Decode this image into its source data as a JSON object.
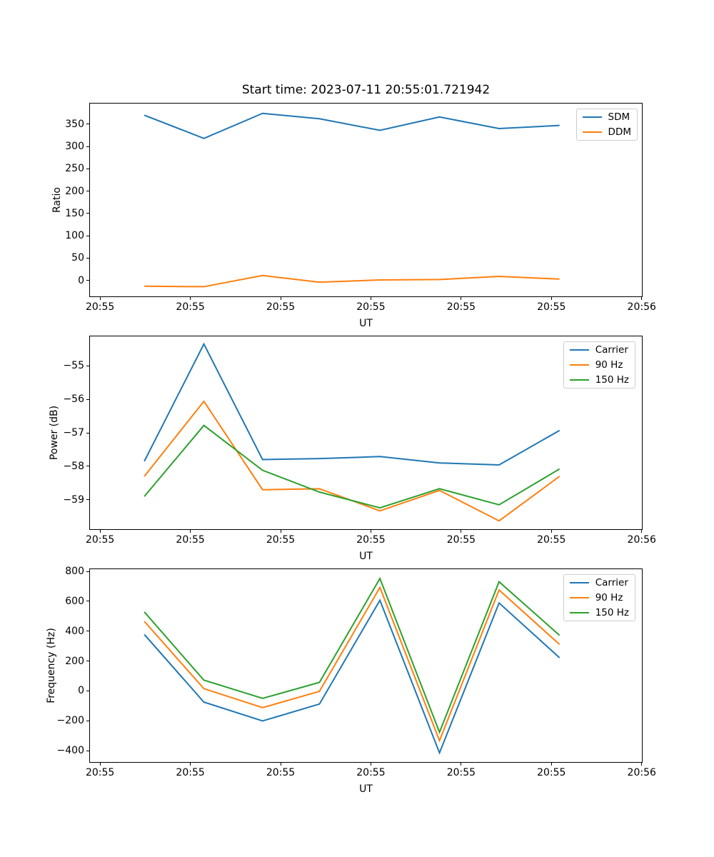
{
  "figure": {
    "title": "Start time: 2023-07-11 20:55:01.721942",
    "background": "#ffffff",
    "text_color": "#000000",
    "x_axis_note": "x values are seconds after 20:55:00 UT"
  },
  "chart_data": [
    {
      "type": "line",
      "ylabel": "Ratio",
      "xlabel": "UT",
      "x": [
        4.9,
        11.5,
        18.0,
        24.3,
        31.0,
        37.6,
        44.2,
        50.9
      ],
      "series": [
        {
          "name": "SDM",
          "color": "#1f77b4",
          "values": [
            370,
            318,
            374,
            362,
            336,
            366,
            340,
            347
          ]
        },
        {
          "name": "DDM",
          "color": "#ff7f0e",
          "values": [
            -13,
            -14,
            11,
            -4,
            1,
            2,
            9,
            3
          ]
        }
      ],
      "xlim": [
        -1.2,
        60.1
      ],
      "ylim": [
        -37.3,
        397.6
      ],
      "x_ticks": {
        "values": [
          0,
          10,
          20,
          30,
          40,
          50,
          60
        ],
        "labels": [
          "20:55",
          "20:55",
          "20:55",
          "20:55",
          "20:55",
          "20:55",
          "20:56"
        ]
      },
      "y_ticks": {
        "values": [
          0,
          50,
          100,
          150,
          200,
          250,
          300,
          350
        ],
        "labels": [
          "0",
          "50",
          "100",
          "150",
          "200",
          "250",
          "300",
          "350"
        ]
      },
      "legend": {
        "position": "upper right"
      },
      "grid": false
    },
    {
      "type": "line",
      "ylabel": "Power (dB)",
      "xlabel": "UT",
      "x": [
        4.9,
        11.5,
        18.0,
        24.3,
        31.0,
        37.6,
        44.2,
        50.9
      ],
      "series": [
        {
          "name": "Carrier",
          "color": "#1f77b4",
          "values": [
            -57.85,
            -54.35,
            -57.8,
            -57.77,
            -57.71,
            -57.9,
            -57.96,
            -56.93
          ]
        },
        {
          "name": "90 Hz",
          "color": "#ff7f0e",
          "values": [
            -58.3,
            -56.06,
            -58.7,
            -58.67,
            -59.33,
            -58.72,
            -59.63,
            -58.3
          ]
        },
        {
          "name": "150 Hz",
          "color": "#2ca02c",
          "values": [
            -58.9,
            -56.78,
            -58.12,
            -58.77,
            -59.24,
            -58.67,
            -59.15,
            -58.08
          ]
        }
      ],
      "xlim": [
        -1.2,
        60.1
      ],
      "ylim": [
        -59.9,
        -54.1
      ],
      "x_ticks": {
        "values": [
          0,
          10,
          20,
          30,
          40,
          50,
          60
        ],
        "labels": [
          "20:55",
          "20:55",
          "20:55",
          "20:55",
          "20:55",
          "20:55",
          "20:56"
        ]
      },
      "y_ticks": {
        "values": [
          -55,
          -56,
          -57,
          -58,
          -59
        ],
        "labels": [
          "−55",
          "−56",
          "−57",
          "−58",
          "−59"
        ]
      },
      "legend": {
        "position": "upper right"
      },
      "grid": false
    },
    {
      "type": "line",
      "ylabel": "Frequency (Hz)",
      "xlabel": "UT",
      "x": [
        4.9,
        11.5,
        18.0,
        24.3,
        31.0,
        37.6,
        44.2,
        50.9
      ],
      "series": [
        {
          "name": "Carrier",
          "color": "#1f77b4",
          "values": [
            378,
            -75,
            -201,
            -88,
            607,
            -415,
            589,
            222
          ]
        },
        {
          "name": "90 Hz",
          "color": "#ff7f0e",
          "values": [
            466,
            15,
            -112,
            -3,
            693,
            -333,
            676,
            311
          ]
        },
        {
          "name": "150 Hz",
          "color": "#2ca02c",
          "values": [
            529,
            72,
            -50,
            57,
            753,
            -277,
            731,
            372
          ]
        }
      ],
      "xlim": [
        -1.2,
        60.1
      ],
      "ylim": [
        -481,
        820
      ],
      "x_ticks": {
        "values": [
          0,
          10,
          20,
          30,
          40,
          50,
          60
        ],
        "labels": [
          "20:55",
          "20:55",
          "20:55",
          "20:55",
          "20:55",
          "20:55",
          "20:56"
        ]
      },
      "y_ticks": {
        "values": [
          800,
          600,
          400,
          200,
          0,
          -200,
          -400
        ],
        "labels": [
          "800",
          "600",
          "400",
          "200",
          "0",
          "−200",
          "−400"
        ]
      },
      "legend": {
        "position": "upper right"
      },
      "grid": false
    }
  ]
}
